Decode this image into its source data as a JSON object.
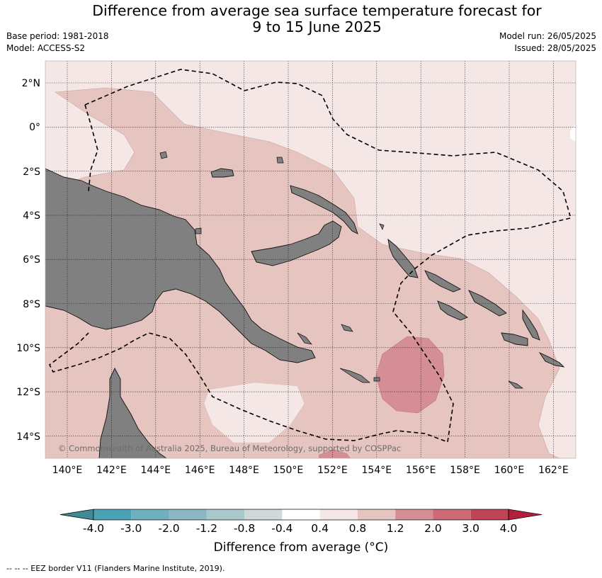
{
  "title_line1": "Difference from average sea surface temperature forecast for",
  "title_line2": "9 to 15 June 2025",
  "base_period": "Base period: 1981-2018",
  "model": "Model: ACCESS-S2",
  "model_run": "Model run: 26/05/2025",
  "issued": "Issued: 28/05/2025",
  "lat_labels": [
    "2°N",
    "0°",
    "2°S",
    "4°S",
    "6°S",
    "8°S",
    "10°S",
    "12°S",
    "14°S"
  ],
  "lon_labels": [
    "140°E",
    "142°E",
    "144°E",
    "146°E",
    "148°E",
    "150°E",
    "152°E",
    "154°E",
    "156°E",
    "158°E",
    "160°E",
    "162°E"
  ],
  "copyright": "© Commonwealth of Australia 2025, Bureau of Meteorology, supported by COSPPac",
  "colorbar": {
    "ticks": [
      "-4.0",
      "-3.0",
      "-2.0",
      "-1.2",
      "-0.8",
      "-0.4",
      "0.4",
      "0.8",
      "1.2",
      "2.0",
      "3.0",
      "4.0"
    ],
    "colors": [
      "#3f8a94",
      "#4aa3b4",
      "#6fb0bf",
      "#8db7c2",
      "#a9c8cc",
      "#d0d8d9",
      "#ffffff",
      "#f4e7e5",
      "#e6c4c0",
      "#d58e96",
      "#cc6a75",
      "#bf4457",
      "#b21f3c"
    ],
    "title": "Difference from average (°C)"
  },
  "footer": "--  --  -- EEZ border V11 (Flanders Marine Institute, 2019).",
  "palette": {
    "land": "#808080",
    "band_0_4_0_8": "#f4e7e5",
    "band_0_8_1_2": "#e6c4c0",
    "band_1_2_2_0": "#d58e96",
    "band_2_0_3_0": "#cc6a75"
  }
}
